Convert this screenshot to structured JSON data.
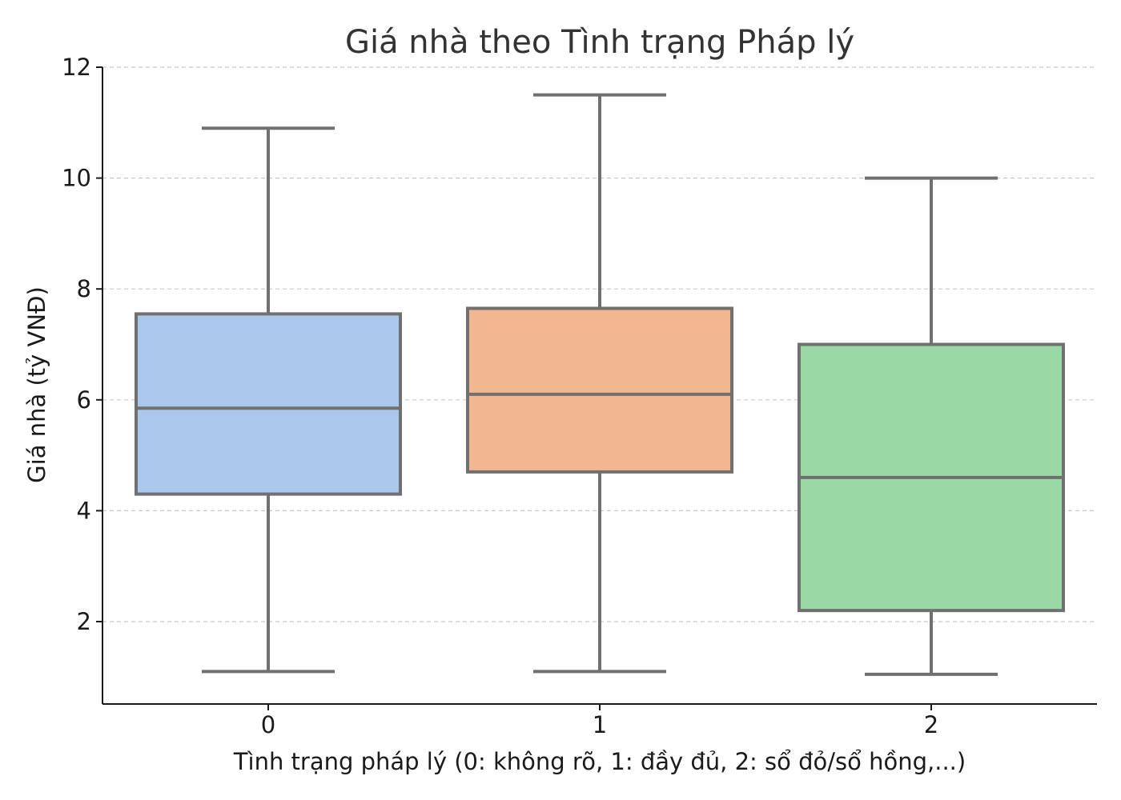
{
  "chart_data": {
    "type": "box",
    "title": "Giá nhà theo Tình trạng Pháp lý",
    "xlabel": "Tình trạng pháp lý (0: không rõ, 1: đầy đủ, 2: sổ đỏ/sổ hồng,...)",
    "ylabel": "Giá nhà (tỷ VNĐ)",
    "categories": [
      "0",
      "1",
      "2"
    ],
    "ylim": [
      0.55,
      12
    ],
    "yticks": [
      "2",
      "4",
      "6",
      "8",
      "10",
      "12"
    ],
    "grid": "y-dashed",
    "boxes": [
      {
        "category": "0",
        "whisker_low": 1.1,
        "q1": 4.3,
        "median": 5.85,
        "q3": 7.55,
        "whisker_high": 10.9,
        "color": "#a9c8ec"
      },
      {
        "category": "1",
        "whisker_low": 1.1,
        "q1": 4.7,
        "median": 6.1,
        "q3": 7.65,
        "whisker_high": 11.5,
        "color": "#f0b790"
      },
      {
        "category": "2",
        "whisker_low": 1.05,
        "q1": 2.2,
        "median": 4.6,
        "q3": 7.0,
        "whisker_high": 10.0,
        "color": "#99d9a6"
      }
    ],
    "line_color": "#707070",
    "grid_color": "#c8c8c8",
    "axis_color": "#1a1a1a"
  }
}
